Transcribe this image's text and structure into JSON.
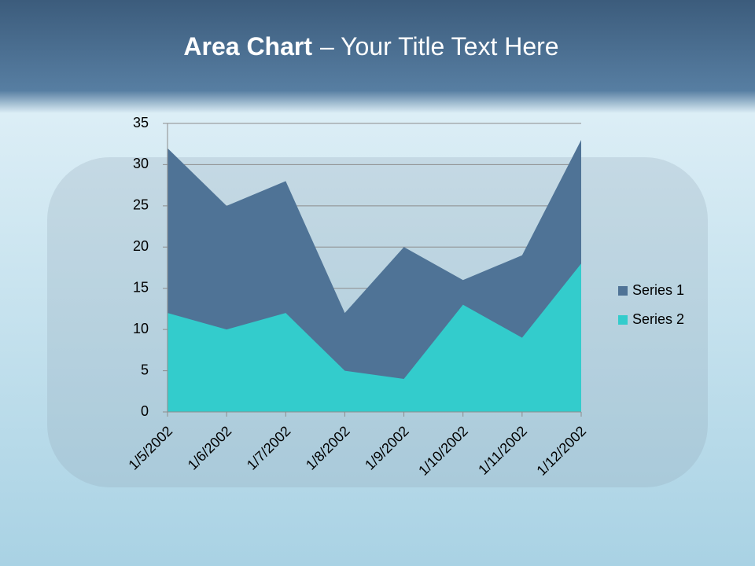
{
  "chart_data": {
    "type": "area",
    "title": "Area Chart",
    "subtitle": "– Your Title Text Here",
    "categories": [
      "1/5/2002",
      "1/6/2002",
      "1/7/2002",
      "1/8/2002",
      "1/9/2002",
      "1/10/2002",
      "1/11/2002",
      "1/12/2002"
    ],
    "series": [
      {
        "name": "Series 1",
        "color": "#4f7396",
        "values": [
          32,
          25,
          28,
          12,
          20,
          16,
          19,
          33
        ]
      },
      {
        "name": "Series 2",
        "color": "#33cccc",
        "values": [
          12,
          10,
          12,
          5,
          4,
          13,
          9,
          18
        ]
      }
    ],
    "ylim": [
      0,
      35
    ],
    "yticks": [
      0,
      5,
      10,
      15,
      20,
      25,
      30,
      35
    ],
    "grid": true,
    "legend": "right"
  }
}
